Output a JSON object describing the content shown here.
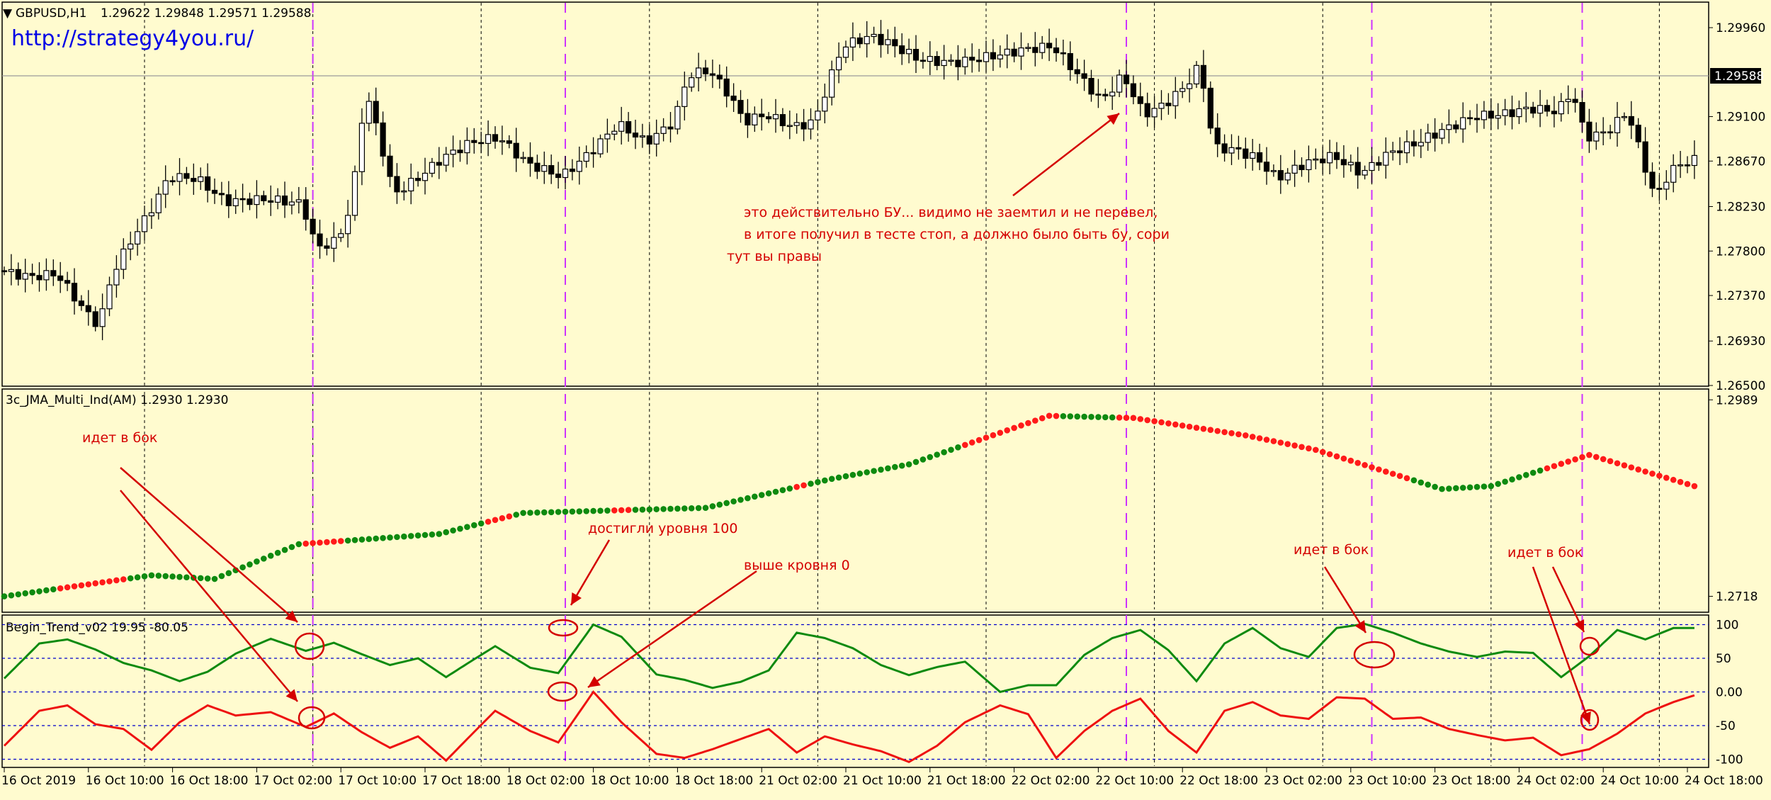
{
  "header": {
    "symbol": "GBPUSD,H1",
    "ohlc": "1.29622 1.29848 1.29571 1.29588",
    "url": "http://strategy4you.ru/"
  },
  "colors": {
    "background": "#fffbcf",
    "dot_green": "#0e8a10",
    "dot_red": "#ff1a1a",
    "line_green": "#0e8a10",
    "line_red": "#ee1111",
    "annotation": "#d40000",
    "vline": "#cc33ff",
    "level": "#0000cc"
  },
  "chart_data": [
    {
      "type": "candlestick",
      "title": "GBPUSD,H1",
      "ylim": [
        1.265,
        1.302
      ],
      "y_ticks": [
        "1.29960",
        "1.29100",
        "1.28670",
        "1.28230",
        "1.27800",
        "1.27370",
        "1.26930",
        "1.26500"
      ],
      "current_price": "1.29588",
      "anchors": [
        {
          "i": 0,
          "p": 1.2761
        },
        {
          "i": 4,
          "p": 1.2755
        },
        {
          "i": 8,
          "p": 1.2758
        },
        {
          "i": 12,
          "p": 1.2722
        },
        {
          "i": 14,
          "p": 1.2708
        },
        {
          "i": 16,
          "p": 1.276
        },
        {
          "i": 19,
          "p": 1.2795
        },
        {
          "i": 21,
          "p": 1.2815
        },
        {
          "i": 24,
          "p": 1.2852
        },
        {
          "i": 28,
          "p": 1.285
        },
        {
          "i": 32,
          "p": 1.2828
        },
        {
          "i": 38,
          "p": 1.283
        },
        {
          "i": 43,
          "p": 1.2826
        },
        {
          "i": 45,
          "p": 1.2783
        },
        {
          "i": 48,
          "p": 1.279
        },
        {
          "i": 50,
          "p": 1.2825
        },
        {
          "i": 52,
          "p": 1.2935
        },
        {
          "i": 54,
          "p": 1.289
        },
        {
          "i": 56,
          "p": 1.2835
        },
        {
          "i": 59,
          "p": 1.2848
        },
        {
          "i": 63,
          "p": 1.287
        },
        {
          "i": 67,
          "p": 1.2885
        },
        {
          "i": 71,
          "p": 1.289
        },
        {
          "i": 75,
          "p": 1.2865
        },
        {
          "i": 80,
          "p": 1.2852
        },
        {
          "i": 84,
          "p": 1.2875
        },
        {
          "i": 88,
          "p": 1.2903
        },
        {
          "i": 92,
          "p": 1.2885
        },
        {
          "i": 96,
          "p": 1.2905
        },
        {
          "i": 98,
          "p": 1.295
        },
        {
          "i": 101,
          "p": 1.2955
        },
        {
          "i": 104,
          "p": 1.293
        },
        {
          "i": 106,
          "p": 1.2905
        },
        {
          "i": 109,
          "p": 1.2912
        },
        {
          "i": 113,
          "p": 1.29
        },
        {
          "i": 116,
          "p": 1.2905
        },
        {
          "i": 118,
          "p": 1.2942
        },
        {
          "i": 120,
          "p": 1.2978
        },
        {
          "i": 124,
          "p": 1.2988
        },
        {
          "i": 127,
          "p": 1.298
        },
        {
          "i": 131,
          "p": 1.2965
        },
        {
          "i": 136,
          "p": 1.2962
        },
        {
          "i": 141,
          "p": 1.2968
        },
        {
          "i": 146,
          "p": 1.2975
        },
        {
          "i": 150,
          "p": 1.2978
        },
        {
          "i": 153,
          "p": 1.2955
        },
        {
          "i": 157,
          "p": 1.2925
        },
        {
          "i": 160,
          "p": 1.295
        },
        {
          "i": 163,
          "p": 1.2912
        },
        {
          "i": 166,
          "p": 1.2922
        },
        {
          "i": 169,
          "p": 1.294
        },
        {
          "i": 171,
          "p": 1.296
        },
        {
          "i": 173,
          "p": 1.288
        },
        {
          "i": 176,
          "p": 1.2878
        },
        {
          "i": 179,
          "p": 1.287
        },
        {
          "i": 182,
          "p": 1.285
        },
        {
          "i": 186,
          "p": 1.2865
        },
        {
          "i": 190,
          "p": 1.2872
        },
        {
          "i": 194,
          "p": 1.2855
        },
        {
          "i": 198,
          "p": 1.2875
        },
        {
          "i": 202,
          "p": 1.2885
        },
        {
          "i": 206,
          "p": 1.2898
        },
        {
          "i": 210,
          "p": 1.291
        },
        {
          "i": 214,
          "p": 1.2912
        },
        {
          "i": 218,
          "p": 1.2918
        },
        {
          "i": 222,
          "p": 1.2915
        },
        {
          "i": 224,
          "p": 1.2935
        },
        {
          "i": 226,
          "p": 1.289
        },
        {
          "i": 229,
          "p": 1.2895
        },
        {
          "i": 232,
          "p": 1.2915
        },
        {
          "i": 234,
          "p": 1.287
        },
        {
          "i": 236,
          "p": 1.283
        },
        {
          "i": 238,
          "p": 1.2858
        },
        {
          "i": 241,
          "p": 1.2868
        }
      ]
    },
    {
      "type": "scatter",
      "title": "3c_JMA_Multi_Ind(AM) 1.2930 1.2930",
      "ylim": [
        1.27,
        1.3
      ],
      "y_ticks": [
        "1.2989",
        "1.2718"
      ],
      "x": [
        0,
        21,
        30,
        42,
        62,
        74,
        85,
        100,
        118,
        129,
        149,
        161,
        177,
        187,
        197,
        205,
        212,
        226,
        241
      ],
      "y": [
        1.2718,
        1.2747,
        1.2742,
        1.279,
        1.2804,
        1.2833,
        1.2836,
        1.284,
        1.288,
        1.29,
        1.2967,
        1.2964,
        1.294,
        1.292,
        1.289,
        1.2866,
        1.287,
        1.2913,
        1.287
      ],
      "red_ranges": [
        [
          8,
          17
        ],
        [
          43,
          48
        ],
        [
          69,
          72
        ],
        [
          87,
          89
        ],
        [
          113,
          114
        ],
        [
          137,
          150
        ],
        [
          159,
          200
        ],
        [
          220,
          241
        ]
      ]
    },
    {
      "type": "line",
      "title": "Begin_Trend_v02 19.95 -80.05",
      "ylim": [
        -110,
        110
      ],
      "levels": [
        100,
        50,
        0,
        -50,
        -100
      ],
      "y_ticks": [
        "100",
        "50",
        "0.00",
        "-50",
        "-100"
      ],
      "series": [
        {
          "x": [
            0,
            5,
            9,
            13,
            17,
            21,
            25,
            29,
            33,
            38,
            43,
            47,
            51,
            55,
            59,
            63,
            66,
            70,
            75,
            79,
            84,
            88,
            93,
            97,
            101,
            105,
            109,
            113,
            117,
            121,
            125,
            129,
            133,
            137,
            142,
            146,
            150,
            154,
            158,
            162,
            166,
            170,
            174,
            178,
            182,
            186,
            190,
            194,
            198,
            202,
            206,
            210,
            214,
            218,
            222,
            226,
            230,
            234,
            238,
            241
          ],
          "values": [
            20,
            72,
            78,
            63,
            43,
            32,
            16,
            30,
            57,
            79,
            61,
            73,
            56,
            40,
            50,
            22,
            42,
            68,
            36,
            28,
            100,
            82,
            26,
            18,
            6,
            15,
            32,
            88,
            80,
            65,
            40,
            25,
            37,
            45,
            0,
            10,
            10,
            55,
            80,
            92,
            62,
            16,
            72,
            95,
            65,
            52,
            95,
            101,
            88,
            72,
            60,
            52,
            60,
            58,
            22,
            53,
            92,
            78,
            95,
            95
          ]
        },
        {
          "x": [
            0,
            5,
            9,
            13,
            17,
            21,
            25,
            29,
            33,
            38,
            43,
            47,
            51,
            55,
            59,
            63,
            66,
            70,
            75,
            79,
            84,
            88,
            93,
            97,
            101,
            105,
            109,
            113,
            117,
            121,
            125,
            129,
            133,
            137,
            142,
            146,
            150,
            154,
            158,
            162,
            166,
            170,
            174,
            178,
            182,
            186,
            190,
            194,
            198,
            202,
            206,
            210,
            214,
            218,
            222,
            226,
            230,
            234,
            238,
            241
          ],
          "values": [
            -80,
            -28,
            -20,
            -48,
            -55,
            -86,
            -45,
            -20,
            -35,
            -30,
            -52,
            -32,
            -60,
            -83,
            -66,
            -102,
            -70,
            -28,
            -58,
            -75,
            0,
            -45,
            -92,
            -98,
            -85,
            -70,
            -55,
            -90,
            -66,
            -78,
            -88,
            -104,
            -80,
            -45,
            -20,
            -33,
            -98,
            -58,
            -28,
            -10,
            -58,
            -90,
            -28,
            -15,
            -35,
            -40,
            -8,
            -10,
            -40,
            -38,
            -55,
            -64,
            -72,
            -68,
            -94,
            -85,
            -62,
            -32,
            -15,
            -5
          ]
        }
      ]
    }
  ],
  "x_axis": {
    "labels": [
      "16 Oct 2019",
      "16 Oct 10:00",
      "16 Oct 18:00",
      "17 Oct 02:00",
      "17 Oct 10:00",
      "17 Oct 18:00",
      "18 Oct 02:00",
      "18 Oct 10:00",
      "18 Oct 18:00",
      "21 Oct 02:00",
      "21 Oct 10:00",
      "21 Oct 18:00",
      "22 Oct 02:00",
      "22 Oct 10:00",
      "22 Oct 18:00",
      "23 Oct 02:00",
      "23 Oct 10:00",
      "23 Oct 18:00",
      "24 Oct 02:00",
      "24 Oct 10:00",
      "24 Oct 18:00"
    ]
  },
  "annotations": {
    "main_note_1": "это действительно БУ... видимо не заемтил и не перевел,",
    "main_note_2": "в итоге получил в тесте стоп, а должно было быть бу, сори",
    "main_note_3": "тут вы правы",
    "sideways_1": "идет в бок",
    "reached_100": "достигли уровня 100",
    "above_zero": "выше кровня 0",
    "sideways_2": "идет в бок",
    "sideways_3": "идет в бок"
  }
}
